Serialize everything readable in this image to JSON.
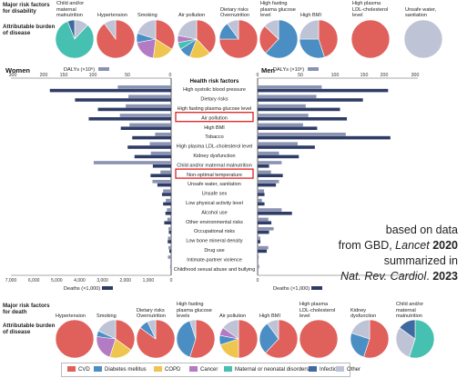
{
  "top": {
    "header_line1": "Major risk factors",
    "header_line2": "for disability",
    "attrib_line1": "Attributable burden",
    "attrib_line2": "of disease",
    "pies": [
      {
        "label": "Child and/or maternal malnutrition",
        "lines": [
          "Child and/or",
          "maternal",
          "malnutrition"
        ],
        "slices": [
          {
            "cat": "other",
            "value": 12
          },
          {
            "cat": "maternal",
            "value": 82
          },
          {
            "cat": "infection",
            "value": 6
          }
        ]
      },
      {
        "label": "Hypertension",
        "lines": [
          "Hypertension"
        ],
        "slices": [
          {
            "cat": "cvd",
            "value": 90
          },
          {
            "cat": "other",
            "value": 10
          }
        ]
      },
      {
        "label": "Smoking",
        "lines": [
          "Smoking"
        ],
        "slices": [
          {
            "cat": "cvd",
            "value": 34
          },
          {
            "cat": "copd",
            "value": 18
          },
          {
            "cat": "cancer",
            "value": 20
          },
          {
            "cat": "diabetes",
            "value": 8
          },
          {
            "cat": "other",
            "value": 20
          }
        ]
      },
      {
        "label": "Air pollution",
        "lines": [
          "Air pollution"
        ],
        "slices": [
          {
            "cat": "cvd",
            "value": 38
          },
          {
            "cat": "copd",
            "value": 18
          },
          {
            "cat": "diabetes",
            "value": 10
          },
          {
            "cat": "maternal",
            "value": 6
          },
          {
            "cat": "cancer",
            "value": 6
          },
          {
            "cat": "other",
            "value": 22
          }
        ]
      },
      {
        "label": "Dietary risks Overnutrition",
        "lines": [
          "Dietary risks",
          "Overnutrition"
        ],
        "slices": [
          {
            "cat": "cvd",
            "value": 75
          },
          {
            "cat": "diabetes",
            "value": 15
          },
          {
            "cat": "other",
            "value": 10
          }
        ]
      },
      {
        "label": "High fasting plasma glucose level",
        "lines": [
          "High fasting",
          "plasma glucose",
          "level"
        ],
        "slices": [
          {
            "cat": "diabetes",
            "value": 62
          },
          {
            "cat": "cvd",
            "value": 25
          },
          {
            "cat": "other",
            "value": 13
          }
        ]
      },
      {
        "label": "High BMI",
        "lines": [
          "High BMI"
        ],
        "slices": [
          {
            "cat": "cvd",
            "value": 45
          },
          {
            "cat": "diabetes",
            "value": 30
          },
          {
            "cat": "other",
            "value": 25
          }
        ]
      },
      {
        "label": "High plasma LDL-cholesterol level",
        "lines": [
          "High plasma",
          "LDL-cholesterol",
          "level"
        ],
        "slices": [
          {
            "cat": "cvd",
            "value": 100
          }
        ]
      },
      {
        "label": "Unsafe water, sanitation",
        "lines": [
          "Unsafe water,",
          "sanitation"
        ],
        "slices": [
          {
            "cat": "other",
            "value": 100
          }
        ]
      }
    ]
  },
  "chart_data": {
    "type": "bar",
    "title": "Health risk factors",
    "left_panel_label": "Women",
    "right_panel_label": "Men",
    "dalys_legend": "DALYs (×10⁶)",
    "deaths_legend": "Deaths (×1,000)",
    "dalys_ticks": [
      300,
      200,
      150,
      100,
      50,
      0
    ],
    "deaths_ticks": [
      "7,000",
      "6,000",
      "5,000",
      "4,000",
      "3,000",
      "2,000",
      "1,000",
      "0"
    ],
    "highlighted": [
      "Air pollution",
      "Non-optimal temperature"
    ],
    "categories": [
      "High systolic blood pressure",
      "Dietary risks",
      "High fasting plasma glucose level",
      "Air pollution",
      "High BMI",
      "Tobacco",
      "High plasma LDL-cholesterol level",
      "Kidney dysfunction",
      "Child and/or maternal malnutrition",
      "Non-optimal temperature",
      "Unsafe water, sanitation",
      "Unsafe sex",
      "Low physical activity level",
      "Alcohol use",
      "Other environmental risks",
      "Occupational risks",
      "Low bone mineral density",
      "Drug use",
      "Intimate-partner violence",
      "Childhood sexual abuse and bullying"
    ],
    "series": [
      {
        "name": "Women DALYs (×10⁶)",
        "values": [
          100,
          80,
          85,
          96,
          78,
          30,
          40,
          38,
          145,
          20,
          35,
          15,
          10,
          8,
          7,
          5,
          6,
          5,
          6,
          2
        ]
      },
      {
        "name": "Women Deaths (×1,000)",
        "values": [
          5300,
          4200,
          3200,
          3600,
          2200,
          1700,
          1900,
          1600,
          800,
          900,
          600,
          400,
          350,
          250,
          300,
          100,
          150,
          80,
          10,
          5
        ]
      },
      {
        "name": "Men DALYs (×10⁶)",
        "values": [
          120,
          110,
          90,
          95,
          85,
          165,
          75,
          40,
          45,
          25,
          40,
          12,
          8,
          45,
          20,
          30,
          5,
          20,
          2,
          3
        ]
      },
      {
        "name": "Men Deaths (×1,000)",
        "values": [
          5700,
          4600,
          3600,
          3900,
          2600,
          5800,
          2500,
          1800,
          500,
          1100,
          800,
          300,
          300,
          1500,
          600,
          500,
          120,
          400,
          5,
          5
        ]
      }
    ],
    "dalys_max": 300,
    "deaths_max": 7000
  },
  "bottom": {
    "header_line1": "Major risk factors",
    "header_line2": "for death",
    "attrib_line1": "Attributable burden",
    "attrib_line2": "of disease",
    "pies": [
      {
        "label": "Hypertension",
        "lines": [
          "Hypertension"
        ],
        "slices": [
          {
            "cat": "cvd",
            "value": 100
          }
        ]
      },
      {
        "label": "Smoking",
        "lines": [
          "Smoking"
        ],
        "slices": [
          {
            "cat": "cvd",
            "value": 35
          },
          {
            "cat": "copd",
            "value": 20
          },
          {
            "cat": "cancer",
            "value": 22
          },
          {
            "cat": "diabetes",
            "value": 5
          },
          {
            "cat": "other",
            "value": 18
          }
        ]
      },
      {
        "label": "Dietary risks Overnutrition",
        "lines": [
          "Dietary risks",
          "Overnutrition"
        ],
        "slices": [
          {
            "cat": "cvd",
            "value": 85
          },
          {
            "cat": "diabetes",
            "value": 8
          },
          {
            "cat": "other",
            "value": 7
          }
        ]
      },
      {
        "label": "High fasting plasma glucose levels",
        "lines": [
          "High fasting",
          "plasma glucose",
          "levels"
        ],
        "slices": [
          {
            "cat": "cvd",
            "value": 55
          },
          {
            "cat": "diabetes",
            "value": 40
          },
          {
            "cat": "other",
            "value": 5
          }
        ]
      },
      {
        "label": "Air pollution",
        "lines": [
          "Air pollution"
        ],
        "slices": [
          {
            "cat": "cvd",
            "value": 50
          },
          {
            "cat": "copd",
            "value": 20
          },
          {
            "cat": "diabetes",
            "value": 8
          },
          {
            "cat": "cancer",
            "value": 7
          },
          {
            "cat": "other",
            "value": 15
          }
        ]
      },
      {
        "label": "High BMI",
        "lines": [
          "High BMI"
        ],
        "slices": [
          {
            "cat": "cvd",
            "value": 62
          },
          {
            "cat": "diabetes",
            "value": 28
          },
          {
            "cat": "other",
            "value": 10
          }
        ]
      },
      {
        "label": "High plasma LDL-cholesterol level",
        "lines": [
          "High plasma",
          "LDL-cholesterol",
          "level"
        ],
        "slices": [
          {
            "cat": "cvd",
            "value": 100
          }
        ]
      },
      {
        "label": "Kidney dysfunction",
        "lines": [
          "Kidney",
          "dysfunction"
        ],
        "slices": [
          {
            "cat": "cvd",
            "value": 55
          },
          {
            "cat": "diabetes",
            "value": 25
          },
          {
            "cat": "other",
            "value": 20
          }
        ]
      },
      {
        "label": "Child and/or maternal malnutrition",
        "lines": [
          "Child and/or",
          "maternal",
          "malnutrition"
        ],
        "slices": [
          {
            "cat": "maternal",
            "value": 55
          },
          {
            "cat": "other",
            "value": 30
          },
          {
            "cat": "infection",
            "value": 15
          }
        ]
      }
    ]
  },
  "legend": [
    {
      "key": "cvd",
      "label": "CVD",
      "color": "#e0605c"
    },
    {
      "key": "diabetes",
      "label": "Diabetes mellitus",
      "color": "#4a8ec4"
    },
    {
      "key": "copd",
      "label": "COPD",
      "color": "#eec64f"
    },
    {
      "key": "cancer",
      "label": "Cancer",
      "color": "#b27bc3"
    },
    {
      "key": "maternal",
      "label": "Maternal or neonatal disorders",
      "color": "#46c0b0"
    },
    {
      "key": "infection",
      "label": "Infection",
      "color": "#3f6aa0"
    },
    {
      "key": "other",
      "label": "Other",
      "color": "#bfc3d6"
    }
  ],
  "colors": {
    "dalys_bar": "#8b93b3",
    "deaths_bar": "#2f3c66",
    "highlight_box": "#e02020"
  },
  "note": {
    "line1": "based on data",
    "line2_pre": "from GBD, ",
    "line2_journal": "Lancet",
    "line2_year": "2020",
    "line3": "summarized in",
    "line4_journal": "Nat. Rev. Cardiol",
    "line4_sep": ". ",
    "line4_year": "2023"
  }
}
